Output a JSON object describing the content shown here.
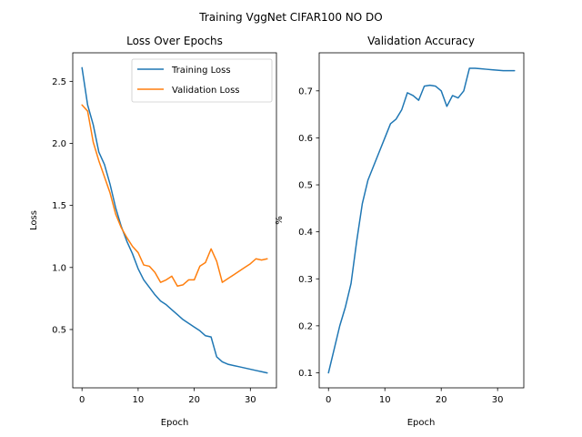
{
  "figure": {
    "suptitle": "Training VggNet CIFAR100 NO DO"
  },
  "chart_data": [
    {
      "type": "line",
      "title": "Loss Over Epochs",
      "xlabel": "Epoch",
      "ylabel": "Loss",
      "xlim": [
        -1.65,
        34.65
      ],
      "ylim": [
        0.03,
        2.73
      ],
      "xticks": [
        0,
        10,
        20,
        30
      ],
      "yticks": [
        0.5,
        1.0,
        1.5,
        2.0,
        2.5
      ],
      "ytick_labels": [
        "0.5",
        "1.0",
        "1.5",
        "2.0",
        "2.5"
      ],
      "grid": false,
      "legend": "upper-right",
      "x": [
        0,
        1,
        2,
        3,
        4,
        5,
        6,
        7,
        8,
        9,
        10,
        11,
        12,
        13,
        14,
        15,
        16,
        17,
        18,
        19,
        20,
        21,
        22,
        23,
        24,
        25,
        26,
        27,
        28,
        29,
        30,
        31,
        32,
        33
      ],
      "series": [
        {
          "name": "Training Loss",
          "color": "#1f77b4",
          "values": [
            2.61,
            2.31,
            2.15,
            1.93,
            1.83,
            1.67,
            1.48,
            1.33,
            1.21,
            1.11,
            0.99,
            0.9,
            0.84,
            0.78,
            0.73,
            0.7,
            0.66,
            0.62,
            0.58,
            0.55,
            0.52,
            0.49,
            0.45,
            0.44,
            0.28,
            0.24,
            0.22,
            0.21,
            0.2,
            0.19,
            0.18,
            0.17,
            0.16,
            0.15
          ]
        },
        {
          "name": "Validation Loss",
          "color": "#ff7f0e",
          "values": [
            2.31,
            2.26,
            2.01,
            1.86,
            1.73,
            1.6,
            1.43,
            1.32,
            1.24,
            1.17,
            1.12,
            1.02,
            1.01,
            0.96,
            0.88,
            0.9,
            0.93,
            0.85,
            0.86,
            0.9,
            0.9,
            1.01,
            1.04,
            1.15,
            1.05,
            0.88,
            0.91,
            0.94,
            0.97,
            1.0,
            1.03,
            1.07,
            1.06,
            1.07
          ]
        }
      ]
    },
    {
      "type": "line",
      "title": "Validation Accuracy",
      "xlabel": "Epoch",
      "ylabel": "%",
      "xlim": [
        -1.65,
        34.65
      ],
      "ylim": [
        0.068,
        0.781
      ],
      "xticks": [
        0,
        10,
        20,
        30
      ],
      "yticks": [
        0.1,
        0.2,
        0.3,
        0.4,
        0.5,
        0.6,
        0.7
      ],
      "ytick_labels": [
        "0.1",
        "0.2",
        "0.3",
        "0.4",
        "0.5",
        "0.6",
        "0.7"
      ],
      "grid": false,
      "x": [
        0,
        1,
        2,
        3,
        4,
        5,
        6,
        7,
        8,
        9,
        10,
        11,
        12,
        13,
        14,
        15,
        16,
        17,
        18,
        19,
        20,
        21,
        22,
        23,
        24,
        25,
        26,
        27,
        28,
        29,
        30,
        31,
        32,
        33
      ],
      "series": [
        {
          "color": "#1f77b4",
          "values": [
            0.1,
            0.15,
            0.2,
            0.24,
            0.29,
            0.38,
            0.46,
            0.51,
            0.54,
            0.57,
            0.6,
            0.63,
            0.64,
            0.66,
            0.696,
            0.69,
            0.68,
            0.71,
            0.712,
            0.71,
            0.7,
            0.667,
            0.69,
            0.685,
            0.7,
            0.748,
            0.748,
            0.747,
            0.746,
            0.745,
            0.744,
            0.743,
            0.743,
            0.743
          ]
        }
      ]
    }
  ]
}
